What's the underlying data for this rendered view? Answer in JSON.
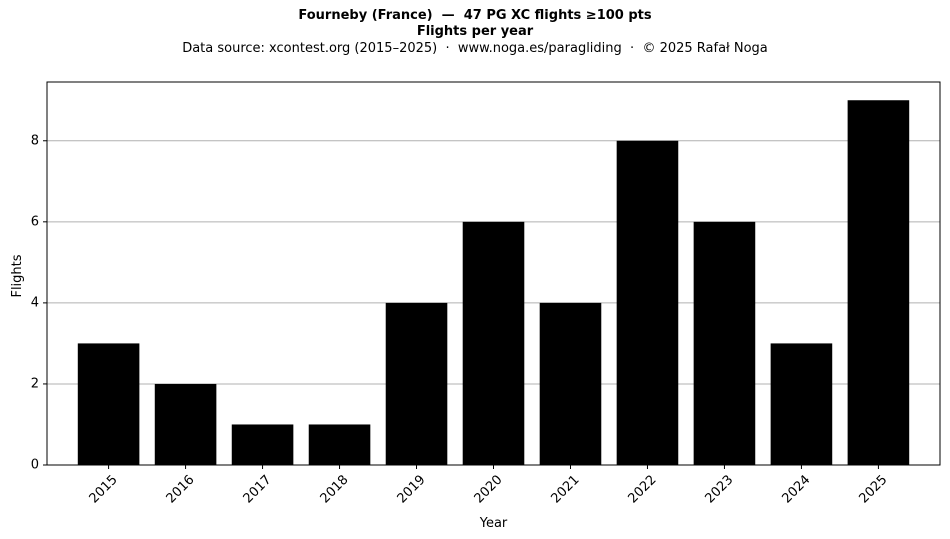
{
  "chart_data": {
    "type": "bar",
    "title": "Fourneby (France)  —  47 PG XC flights ≥100 pts",
    "subtitle": "Flights per year",
    "source": "Data source: xcontest.org (2015–2025)  ·  www.noga.es/paragliding  ·  © 2025 Rafał Noga",
    "xlabel": "Year",
    "ylabel": "Flights",
    "categories": [
      "2015",
      "2016",
      "2017",
      "2018",
      "2019",
      "2020",
      "2021",
      "2022",
      "2023",
      "2024",
      "2025"
    ],
    "values": [
      3,
      2,
      1,
      1,
      4,
      6,
      4,
      8,
      6,
      3,
      9
    ],
    "ylim": [
      0,
      9.45
    ],
    "yticks": [
      0,
      2,
      4,
      6,
      8
    ],
    "grid": "y-major",
    "bar_color": "#000000",
    "grid_color": "#b0b0b0"
  }
}
